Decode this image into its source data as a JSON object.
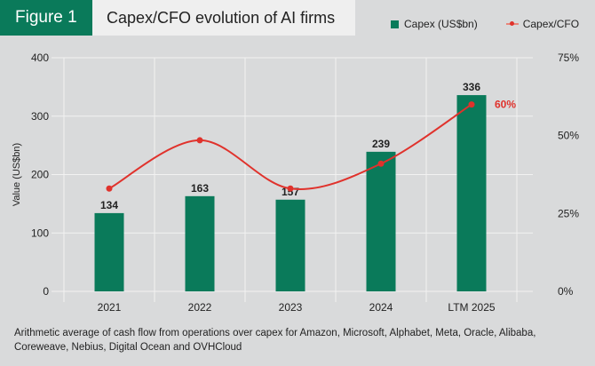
{
  "header": {
    "figure_label": "Figure 1",
    "title": "Capex/CFO evolution of AI firms"
  },
  "legend": {
    "bar_label": "Capex (US$bn)",
    "line_label": "Capex/CFO"
  },
  "colors": {
    "bar": "#0a7a5a",
    "line": "#e0322c",
    "brand": "#0a7a5a"
  },
  "caption": "Arithmetic average of cash flow from operations over capex for Amazon, Microsoft, Alphabet, Meta, Oracle, Alibaba, Coreweave, Nebius, Digital Ocean and OVHCloud",
  "chart_data": {
    "type": "bar",
    "title": "Capex/CFO evolution of AI firms",
    "categories": [
      "2021",
      "2022",
      "2023",
      "2024",
      "LTM 2025"
    ],
    "series": [
      {
        "name": "Capex (US$bn)",
        "type": "bar",
        "axis": "left",
        "values": [
          134,
          163,
          157,
          239,
          336
        ]
      },
      {
        "name": "Capex/CFO",
        "type": "line",
        "axis": "right",
        "values": [
          33,
          48.5,
          33,
          41,
          60
        ],
        "unit": "%"
      }
    ],
    "ylabel": "Value (US$bn)",
    "ylim": [
      0,
      400
    ],
    "yticks": [
      "0",
      "100",
      "200",
      "300",
      "400"
    ],
    "y2lim": [
      0,
      75
    ],
    "y2ticks": [
      "0%",
      "25%",
      "50%",
      "75%"
    ],
    "annotations": [
      {
        "text": "60%",
        "series": "Capex/CFO",
        "category": "LTM 2025"
      }
    ],
    "grid": true,
    "legend_position": "top-right"
  }
}
